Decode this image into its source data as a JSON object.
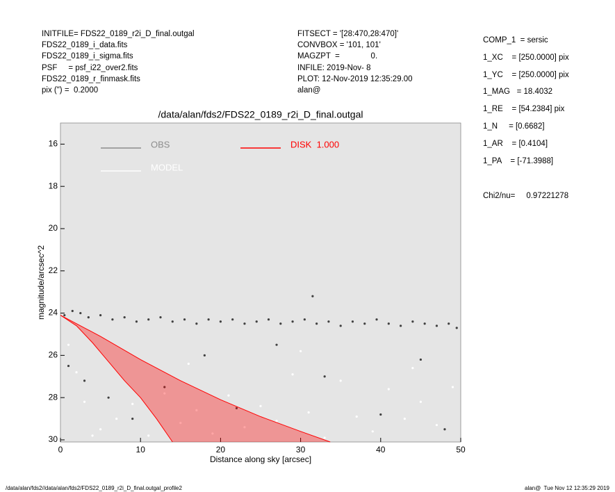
{
  "header": {
    "left": [
      "INITFILE= FDS22_0189_r2i_D_final.outgal",
      "FDS22_0189_i_data.fits",
      "FDS22_0189_i_sigma.fits",
      "PSF     = psf_i22_over2.fits",
      "FDS22_0189_r_finmask.fits",
      "pix (\") =  0.2000"
    ],
    "middle": [
      "FITSECT = '[28:470,28:470]'",
      "CONVBOX = '101, 101'",
      "MAGZPT  =              0.",
      "INFILE: 2019-Nov- 8",
      "PLOT: 12-Nov-2019 12:35:29.00",
      "alan@"
    ],
    "right": [
      "COMP_1  = sersic",
      "1_XC    = [250.0000] pix",
      "1_YC    = [250.0000] pix",
      "1_MAG   = 18.4032",
      "1_RE    = [54.2384] pix",
      "1_N     = [0.6682]",
      "1_AR    = [0.4104]",
      "1_PA    = [-71.3988]"
    ],
    "chi": "Chi2/nu=     0.97221278"
  },
  "footer": {
    "left": "/data/alan/fds2//data/alan/fds2/FDS22_0189_r2i_D_final.outgal_profile2",
    "right": "alan@  Tue Nov 12 12:35:29 2019"
  },
  "chart_data": {
    "type": "scatter",
    "title": "/data/alan/fds2/FDS22_0189_r2i_D_final.outgal",
    "x_label": "Distance along sky [arcsec]",
    "y_label": "magnitude/arcsec^2",
    "xlim": [
      0,
      50
    ],
    "ylim": [
      15,
      30.1
    ],
    "y_inverted": true,
    "xticks": [
      0,
      10,
      20,
      30,
      40,
      50
    ],
    "yticks": [
      16,
      18,
      20,
      22,
      24,
      26,
      28,
      30
    ],
    "background": "#e5e5e5",
    "series": [
      {
        "name": "OBS",
        "color": "#404040",
        "legend_color": "#8c8c8c",
        "x": [
          0.5,
          1.5,
          2.5,
          3.5,
          5,
          6.5,
          8,
          9.5,
          11,
          12.5,
          14,
          15.5,
          17,
          18.5,
          20,
          21.5,
          23,
          24.5,
          26,
          27.5,
          29,
          30.5,
          32,
          33.5,
          35,
          36.5,
          38,
          39.5,
          41,
          42.5,
          44,
          45.5,
          47,
          48.5,
          49.5,
          31.5,
          1,
          3,
          6,
          9,
          13,
          18,
          22,
          27,
          33,
          40,
          45,
          48
        ],
        "values": [
          24.1,
          23.9,
          24.0,
          24.2,
          24.1,
          24.3,
          24.2,
          24.4,
          24.3,
          24.2,
          24.4,
          24.3,
          24.5,
          24.3,
          24.4,
          24.3,
          24.5,
          24.4,
          24.3,
          24.5,
          24.4,
          24.3,
          24.5,
          24.4,
          24.6,
          24.4,
          24.5,
          24.3,
          24.5,
          24.6,
          24.4,
          24.5,
          24.6,
          24.5,
          24.7,
          23.2,
          26.5,
          27.2,
          28.0,
          29.0,
          27.5,
          26.0,
          28.5,
          25.5,
          27.0,
          28.8,
          26.2,
          29.5
        ]
      },
      {
        "name": "MODEL",
        "color": "#ffffff",
        "legend_color": "#ffffff",
        "x": [
          1,
          2,
          3,
          5,
          7,
          9,
          11,
          13,
          15,
          17,
          19,
          21,
          23,
          25,
          27,
          29,
          31,
          33,
          35,
          37,
          39,
          41,
          43,
          45,
          47,
          49,
          4,
          16,
          30,
          44
        ],
        "values": [
          25.5,
          26.8,
          28.2,
          29.5,
          29.0,
          28.3,
          29.8,
          27.8,
          29.2,
          28.6,
          29.7,
          27.9,
          29.4,
          28.4,
          29.1,
          26.9,
          28.7,
          29.9,
          27.2,
          28.9,
          29.6,
          27.6,
          29.0,
          28.2,
          29.3,
          27.5,
          29.8,
          26.4,
          25.8,
          26.6
        ]
      },
      {
        "name": "DISK  1.000",
        "color": "#ff0000",
        "legend_color": "#ff0000",
        "x": [
          0,
          5,
          10,
          15,
          20,
          25,
          30,
          33.7
        ],
        "values": [
          24.1,
          25.1,
          26.2,
          27.2,
          28.1,
          28.9,
          29.6,
          30.1
        ],
        "lower_x": [
          0,
          2,
          4,
          6,
          8,
          10,
          12,
          14
        ],
        "lower_values": [
          24.1,
          24.6,
          25.4,
          26.3,
          27.2,
          28.0,
          29.0,
          30.1
        ]
      }
    ]
  }
}
